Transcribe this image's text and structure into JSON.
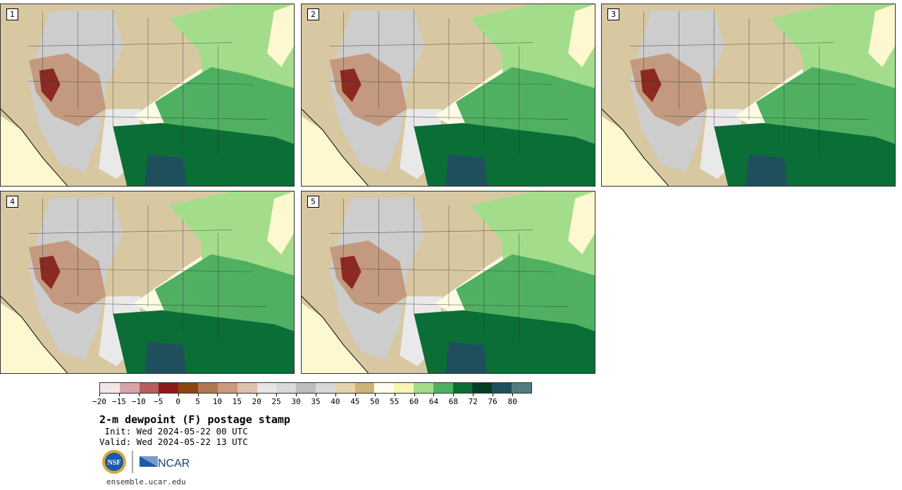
{
  "panels": [
    {
      "label": "1"
    },
    {
      "label": "2"
    },
    {
      "label": "3"
    },
    {
      "label": "4"
    },
    {
      "label": "5"
    }
  ],
  "legend": {
    "colors": [
      "#f3e6e6",
      "#d8a3a6",
      "#b5605e",
      "#8c1a1a",
      "#8b4513",
      "#b07850",
      "#c99a7e",
      "#ddc0ad",
      "#e6e6e6",
      "#d9d9d9",
      "#bdbdbd",
      "#d8d8d8",
      "#e4d3ab",
      "#cfb27a",
      "#fffff0",
      "#f7f6b4",
      "#a3dd8b",
      "#4fb061",
      "#0a6e36",
      "#063d24",
      "#1f4f5c",
      "#4f7d80"
    ],
    "tick_labels": [
      "−20",
      "−15",
      "−10",
      "−5",
      "0",
      "5",
      "10",
      "15",
      "20",
      "25",
      "30",
      "35",
      "40",
      "45",
      "50",
      "55",
      "60",
      "64",
      "68",
      "72",
      "76",
      "80"
    ]
  },
  "title": "2-m dewpoint (F) postage stamp",
  "init_line": " Init: Wed 2024-05-22 00 UTC",
  "valid_line": "Valid: Wed 2024-05-22 13 UTC",
  "logos": {
    "nsf": "NSF",
    "ncar": "NCAR"
  },
  "url": "ensemble.ucar.edu",
  "colors": {
    "ocean": "#fdf8d0",
    "border": "#000000"
  }
}
